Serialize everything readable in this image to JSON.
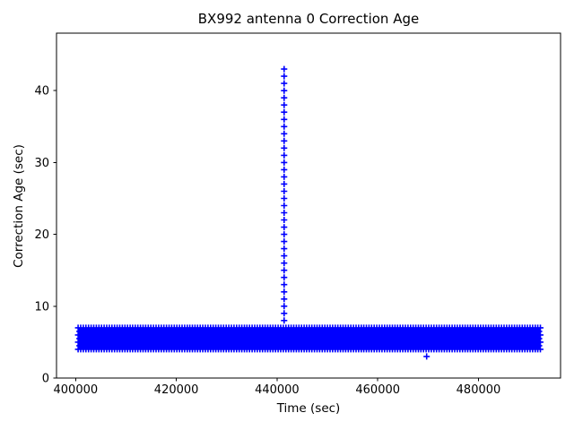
{
  "chart_data": {
    "type": "scatter",
    "title": "BX992 antenna 0 Correction Age",
    "xlabel": "Time (sec)",
    "ylabel": "Correction Age (sec)",
    "xlim": [
      396200,
      496300
    ],
    "ylim": [
      0,
      48
    ],
    "xticks": [
      400000,
      420000,
      440000,
      460000,
      480000
    ],
    "yticks": [
      0,
      10,
      20,
      30,
      40
    ],
    "grid": false,
    "legend": false,
    "marker": "+",
    "marker_color": "#0000ff",
    "axis_color": "#000000",
    "background_color": "#ffffff",
    "series": [
      {
        "name": "dense-correction-age-band",
        "description": "Correction age stays between ~4 and ~7 sec for the whole log; points are so dense they render as a solid blue block",
        "render": "band",
        "x_start": 400500,
        "x_end": 492300,
        "y_values": [
          4,
          4.5,
          5,
          5.5,
          6,
          6.5,
          7
        ],
        "columns": 178
      },
      {
        "name": "correction-outage-spike",
        "description": "Correction age ramps from 8 up to 43 sec at one time epoch",
        "render": "vertical-ramp",
        "x": 441400,
        "y_start": 8,
        "y_end": 43,
        "y_step": 1
      },
      {
        "name": "isolated-low-point",
        "description": "Single low correction-age sample",
        "render": "points",
        "points": [
          [
            469700,
            3
          ]
        ]
      }
    ]
  }
}
